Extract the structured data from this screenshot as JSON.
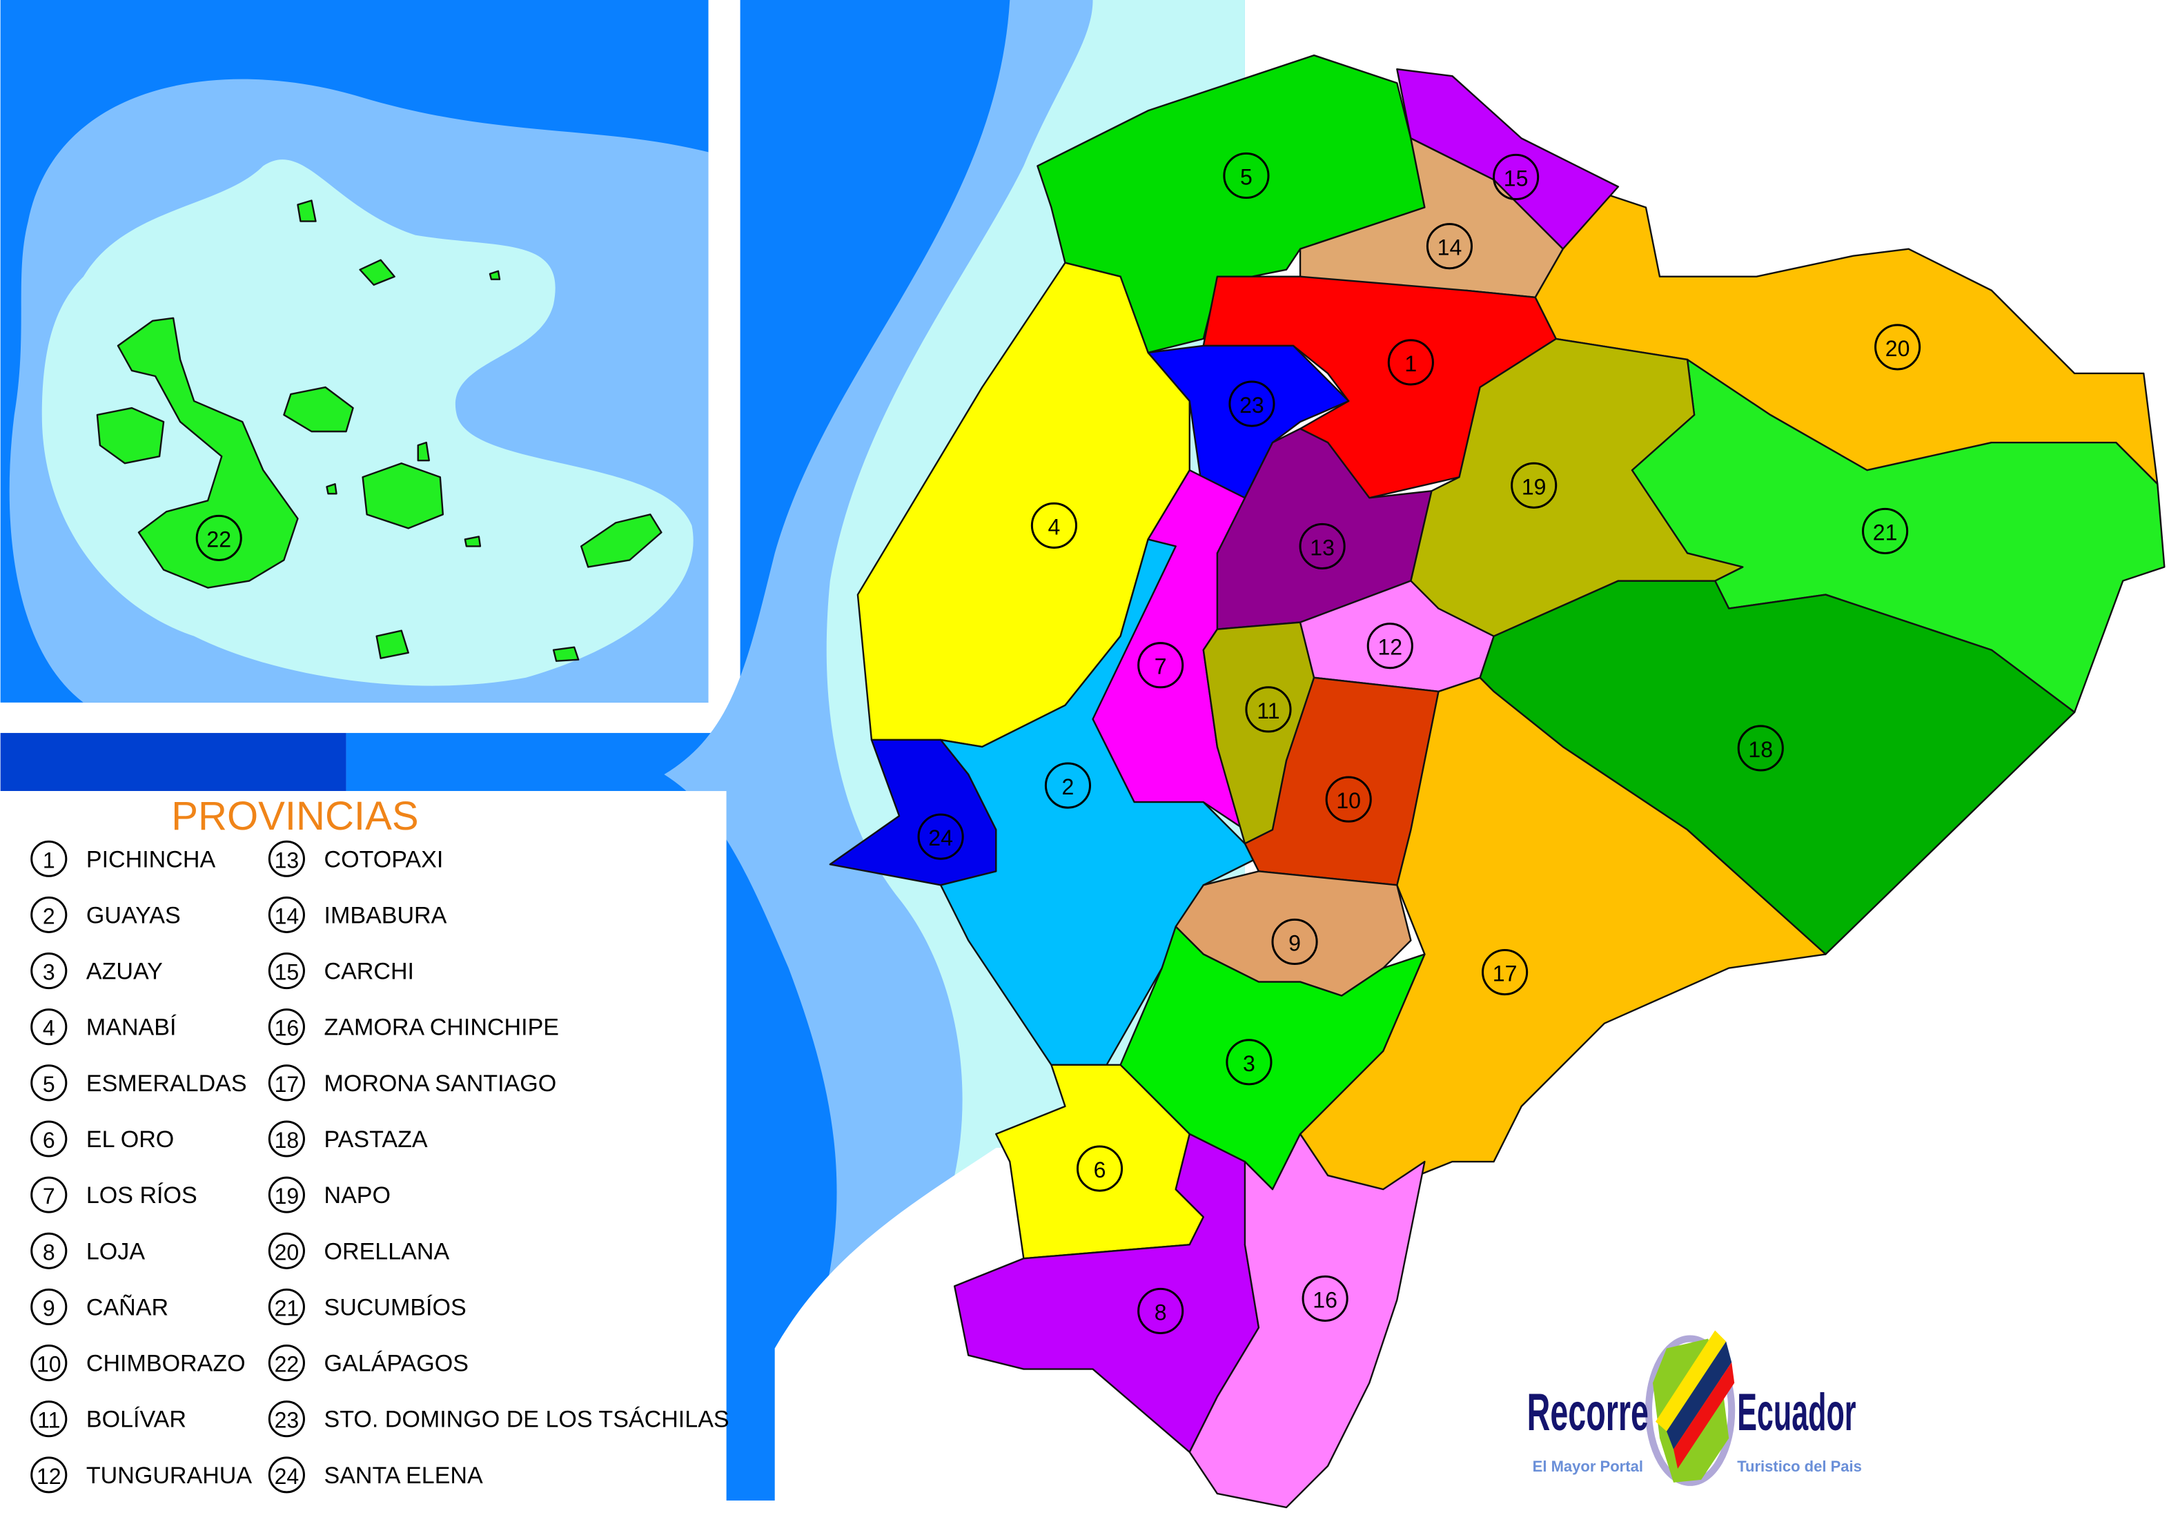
{
  "legend": {
    "title": "PROVINCIAS",
    "provinces": [
      {
        "num": "1",
        "name": "PICHINCHA",
        "color": "#ff0000"
      },
      {
        "num": "2",
        "name": "GUAYAS",
        "color": "#00bfff"
      },
      {
        "num": "3",
        "name": "AZUAY",
        "color": "#00ee00"
      },
      {
        "num": "4",
        "name": "MANABÍ",
        "color": "#ffff00"
      },
      {
        "num": "5",
        "name": "ESMERALDAS",
        "color": "#00dd00"
      },
      {
        "num": "6",
        "name": "EL ORO",
        "color": "#ffff00"
      },
      {
        "num": "7",
        "name": "LOS RÍOS",
        "color": "#ff00ff"
      },
      {
        "num": "8",
        "name": "LOJA",
        "color": "#c000ff"
      },
      {
        "num": "9",
        "name": "CAÑAR",
        "color": "#e0a068"
      },
      {
        "num": "10",
        "name": "CHIMBORAZO",
        "color": "#dd3a00"
      },
      {
        "num": "11",
        "name": "BOLÍVAR",
        "color": "#b0b000"
      },
      {
        "num": "12",
        "name": "TUNGURAHUA",
        "color": "#ff80ff"
      },
      {
        "num": "13",
        "name": "COTOPAXI",
        "color": "#900090"
      },
      {
        "num": "14",
        "name": "IMBABURA",
        "color": "#e0a870"
      },
      {
        "num": "15",
        "name": "CARCHI",
        "color": "#c000ff"
      },
      {
        "num": "16",
        "name": "ZAMORA CHINCHIPE",
        "color": "#ff80ff"
      },
      {
        "num": "17",
        "name": "MORONA SANTIAGO",
        "color": "#ffc000"
      },
      {
        "num": "18",
        "name": "PASTAZA",
        "color": "#00b000"
      },
      {
        "num": "19",
        "name": "NAPO",
        "color": "#b8b800"
      },
      {
        "num": "20",
        "name": "ORELLANA",
        "color": "#ffc000"
      },
      {
        "num": "21",
        "name": "SUCUMBÍOS",
        "color": "#22ee22"
      },
      {
        "num": "22",
        "name": "GALÁPAGOS",
        "color": "#22ee22"
      },
      {
        "num": "23",
        "name": "STO. DOMINGO DE LOS TSÁCHILAS",
        "color": "#0000ff"
      },
      {
        "num": "24",
        "name": "SANTA ELENA",
        "color": "#0000ee"
      }
    ]
  },
  "colors": {
    "deep_ocean": "#0a80ff",
    "mid_ocean": "#80c0ff",
    "shallow_ocean": "#c2f8f8",
    "dark_band": "#0040d0"
  },
  "logo": {
    "word1": "Recorre",
    "word2": "Ecuador",
    "tagline1": "El Mayor Portal",
    "tagline2": "Turistico del Pais"
  }
}
